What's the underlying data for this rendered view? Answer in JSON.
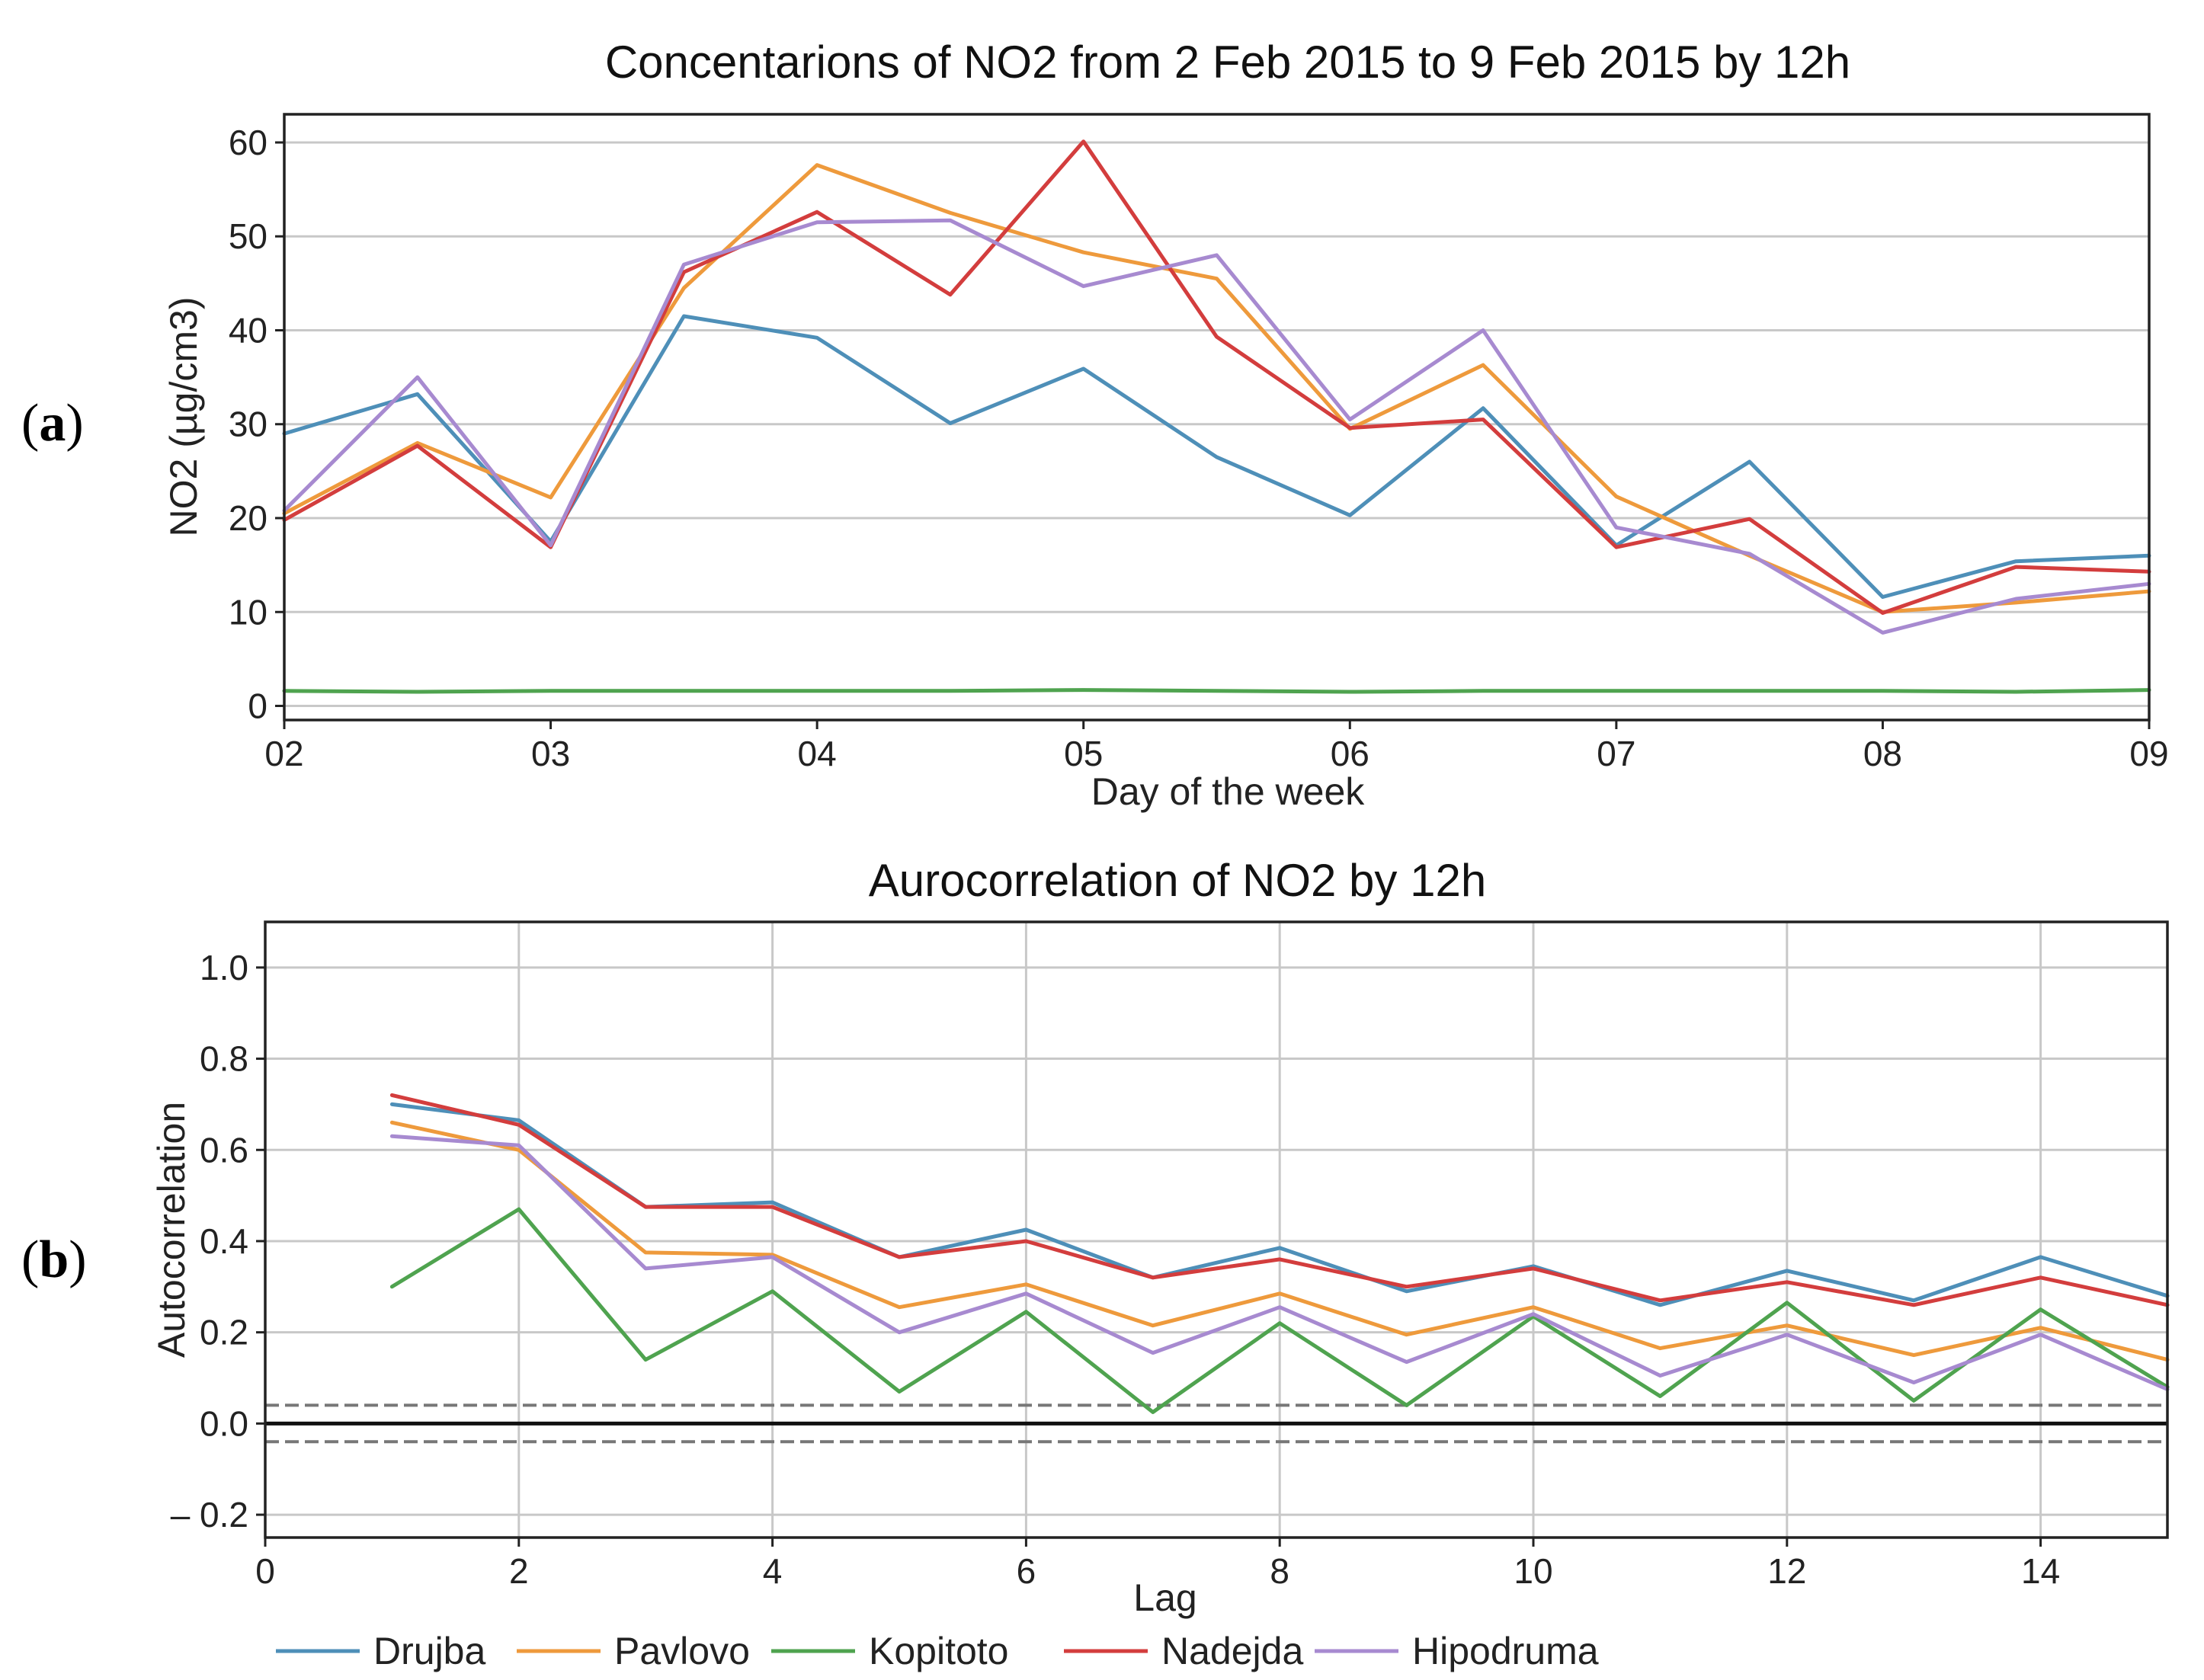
{
  "panels": {
    "a": {
      "open": "(",
      "letter": "a",
      "close": ")"
    },
    "b": {
      "open": "(",
      "letter": "b",
      "close": ")"
    }
  },
  "legend": [
    {
      "name": "Drujba",
      "color": "#4e8fb8"
    },
    {
      "name": "Pavlovo",
      "color": "#ee9a3c"
    },
    {
      "name": "Kopitoto",
      "color": "#4fa34f"
    },
    {
      "name": "Nadejda",
      "color": "#d33d3d"
    },
    {
      "name": "Hipodruma",
      "color": "#a78ad0"
    }
  ],
  "chart_data": [
    {
      "type": "line",
      "title": "Concentarions of NO2 from 2 Feb 2015 to 9 Feb 2015 by 12h",
      "xlabel": "Day of the week",
      "ylabel": "NO2 (µg/cm3)",
      "x": [
        2,
        2.5,
        3,
        3.5,
        4,
        4.5,
        5,
        5.5,
        6,
        6.5,
        7,
        7.5,
        8,
        8.5,
        9
      ],
      "xlim": [
        2,
        9
      ],
      "ylim": [
        -1.5,
        63
      ],
      "xticks": [
        2,
        3,
        4,
        5,
        6,
        7,
        8,
        9
      ],
      "xtick_labels": [
        "02",
        "03",
        "04",
        "05",
        "06",
        "07",
        "08",
        "09"
      ],
      "yticks": [
        0,
        10,
        20,
        30,
        40,
        50,
        60
      ],
      "ytick_labels": [
        "0",
        "10",
        "20",
        "30",
        "40",
        "50",
        "60"
      ],
      "grid": "horizontal",
      "series": [
        {
          "name": "Drujba",
          "color": "#4e8fb8",
          "values": [
            29,
            33.2,
            17.5,
            41.5,
            39.2,
            30.1,
            35.9,
            26.5,
            20.3,
            31.7,
            17.1,
            26,
            11.6,
            15.4,
            16
          ]
        },
        {
          "name": "Pavlovo",
          "color": "#ee9a3c",
          "values": [
            20.5,
            28,
            22.2,
            44.5,
            57.6,
            52.5,
            48.3,
            45.5,
            29.5,
            36.3,
            22.3,
            16,
            10,
            11,
            12.2
          ]
        },
        {
          "name": "Kopitoto",
          "color": "#4fa34f",
          "values": [
            1.6,
            1.5,
            1.6,
            1.6,
            1.6,
            1.6,
            1.7,
            1.6,
            1.5,
            1.6,
            1.6,
            1.6,
            1.6,
            1.5,
            1.7
          ]
        },
        {
          "name": "Nadejda",
          "color": "#d33d3d",
          "values": [
            19.8,
            27.7,
            16.9,
            46.2,
            52.6,
            43.8,
            60.1,
            39.3,
            29.6,
            30.5,
            16.9,
            19.9,
            9.9,
            14.8,
            14.3
          ]
        },
        {
          "name": "Hipodruma",
          "color": "#a78ad0",
          "values": [
            20.8,
            35,
            17.1,
            47,
            51.5,
            51.7,
            44.7,
            48,
            30.5,
            40,
            19,
            16.2,
            7.8,
            11.4,
            13
          ]
        }
      ]
    },
    {
      "type": "line",
      "title": "Aurocorrelation of NO2 by 12h",
      "xlabel": "Lag",
      "ylabel": "Autocorrelation",
      "x": [
        1,
        2,
        3,
        4,
        5,
        6,
        7,
        8,
        9,
        10,
        11,
        12,
        13,
        14,
        15
      ],
      "xlim": [
        0,
        15
      ],
      "ylim": [
        -0.25,
        1.1
      ],
      "xticks": [
        0,
        2,
        4,
        6,
        8,
        10,
        12,
        14
      ],
      "xtick_labels": [
        "0",
        "2",
        "4",
        "6",
        "8",
        "10",
        "12",
        "14"
      ],
      "yticks": [
        -0.2,
        0,
        0.2,
        0.4,
        0.6,
        0.8,
        1.0
      ],
      "ytick_labels": [
        "– 0.2",
        "0.0",
        "0.2",
        "0.4",
        "0.6",
        "0.8",
        "1.0"
      ],
      "grid": "both",
      "reference_lines": [
        {
          "y": 0,
          "style": "solid",
          "color": "#111111"
        },
        {
          "y": 0.04,
          "style": "dashed",
          "color": "#777777"
        },
        {
          "y": -0.04,
          "style": "dashed",
          "color": "#777777"
        }
      ],
      "series": [
        {
          "name": "Drujba",
          "color": "#4e8fb8",
          "values": [
            0.7,
            0.665,
            0.475,
            0.485,
            0.365,
            0.425,
            0.32,
            0.385,
            0.29,
            0.345,
            0.26,
            0.335,
            0.27,
            0.365,
            0.28
          ]
        },
        {
          "name": "Pavlovo",
          "color": "#ee9a3c",
          "values": [
            0.66,
            0.6,
            0.375,
            0.37,
            0.255,
            0.305,
            0.215,
            0.285,
            0.195,
            0.255,
            0.165,
            0.215,
            0.15,
            0.21,
            0.14
          ]
        },
        {
          "name": "Kopitoto",
          "color": "#4fa34f",
          "values": [
            0.3,
            0.47,
            0.14,
            0.29,
            0.07,
            0.245,
            0.025,
            0.22,
            0.04,
            0.235,
            0.06,
            0.265,
            0.05,
            0.25,
            0.08
          ]
        },
        {
          "name": "Nadejda",
          "color": "#d33d3d",
          "values": [
            0.72,
            0.655,
            0.475,
            0.475,
            0.365,
            0.4,
            0.32,
            0.36,
            0.3,
            0.34,
            0.27,
            0.31,
            0.26,
            0.32,
            0.26
          ]
        },
        {
          "name": "Hipodruma",
          "color": "#a78ad0",
          "values": [
            0.63,
            0.61,
            0.34,
            0.365,
            0.2,
            0.285,
            0.155,
            0.255,
            0.135,
            0.24,
            0.105,
            0.195,
            0.09,
            0.195,
            0.075
          ]
        }
      ]
    }
  ]
}
